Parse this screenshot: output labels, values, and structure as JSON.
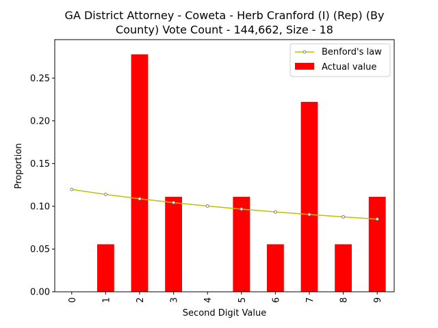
{
  "chart_data": {
    "type": "bar",
    "title_lines": [
      "GA District Attorney - Coweta - Herb Cranford (I) (Rep) (By",
      "County) Vote Count - 144,662, Size - 18"
    ],
    "xlabel": "Second Digit Value",
    "ylabel": "Proportion",
    "categories": [
      "0",
      "1",
      "2",
      "3",
      "4",
      "5",
      "6",
      "7",
      "8",
      "9"
    ],
    "ylim": [
      0,
      0.295
    ],
    "yticks": [
      "0.00",
      "0.05",
      "0.10",
      "0.15",
      "0.20",
      "0.25"
    ],
    "grid": false,
    "legend_position": "top-right",
    "series": [
      {
        "name": "Benford's law",
        "type": "line",
        "color": "#bfbf00",
        "marker_edge_color": "#808080",
        "values": [
          0.1197,
          0.1139,
          0.1088,
          0.1043,
          0.1003,
          0.0967,
          0.0934,
          0.0904,
          0.0876,
          0.085
        ]
      },
      {
        "name": "Actual value",
        "type": "bar",
        "color": "#ff0000",
        "values": [
          0.0,
          0.0556,
          0.2778,
          0.1111,
          0.0,
          0.1111,
          0.0556,
          0.2222,
          0.0556,
          0.1111
        ]
      }
    ]
  }
}
